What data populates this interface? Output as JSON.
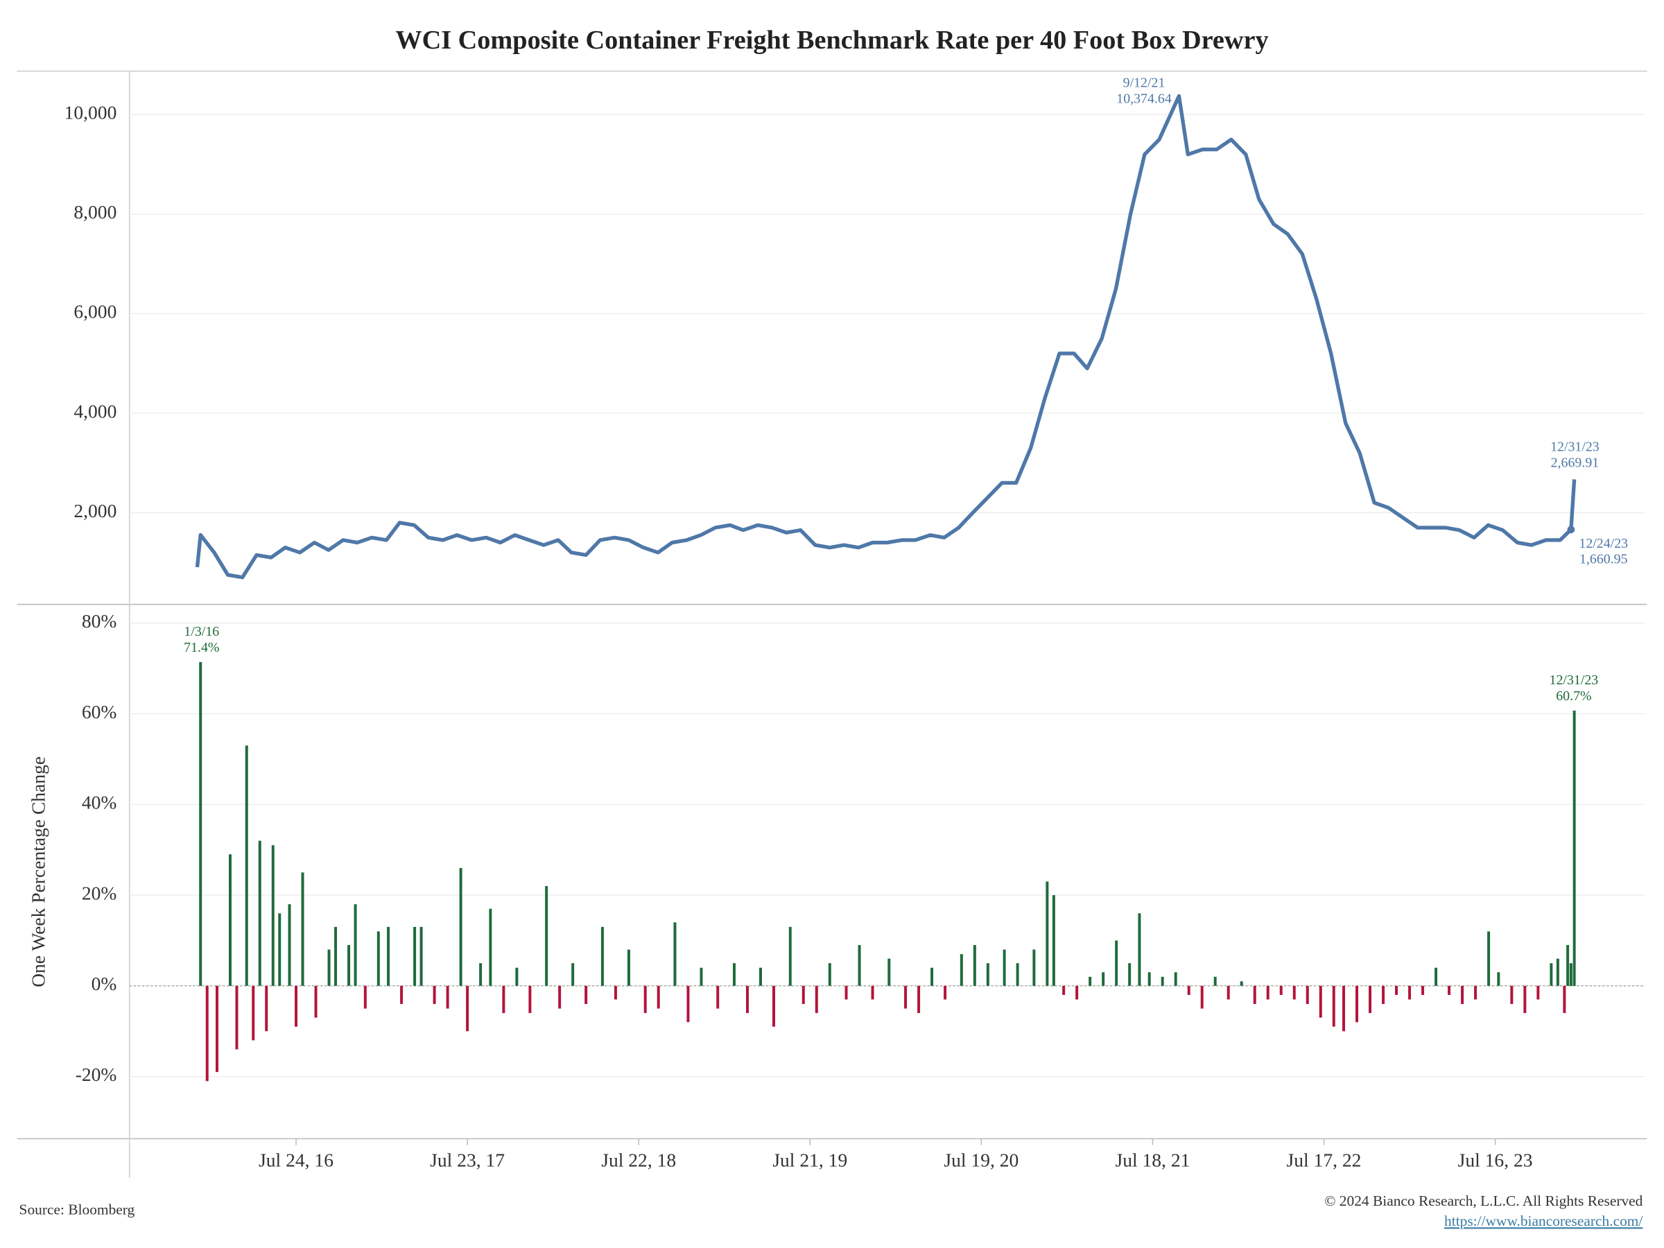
{
  "title": "WCI Composite Container Freight Benchmark Rate per 40 Foot Box Drewry",
  "source": "Source: Bloomberg",
  "copyright": "© 2024 Bianco Research, L.L.C. All Rights Reserved",
  "url": "https://www.biancoresearch.com/",
  "chart_data": [
    {
      "type": "line",
      "color": "#4f78a8",
      "xlim": [
        "2015-08-05",
        "2024-05-29"
      ],
      "ylim": [
        190,
        10875
      ],
      "yticks": [
        {
          "value": 2000,
          "label": "2,000"
        },
        {
          "value": 4000,
          "label": "4,000"
        },
        {
          "value": 6000,
          "label": "6,000"
        },
        {
          "value": 8000,
          "label": "8,000"
        },
        {
          "value": 10000,
          "label": "10,000"
        }
      ],
      "grid": true,
      "x": [
        "2015-12-27",
        "2016-01-03",
        "2016-02-01",
        "2016-03-01",
        "2016-04-01",
        "2016-05-01",
        "2016-06-01",
        "2016-07-01",
        "2016-08-01",
        "2016-09-01",
        "2016-10-01",
        "2016-11-01",
        "2016-12-01",
        "2017-01-01",
        "2017-02-01",
        "2017-03-01",
        "2017-04-01",
        "2017-05-01",
        "2017-06-01",
        "2017-07-01",
        "2017-08-01",
        "2017-09-01",
        "2017-10-01",
        "2017-11-01",
        "2017-12-01",
        "2018-01-01",
        "2018-02-01",
        "2018-03-01",
        "2018-04-01",
        "2018-05-01",
        "2018-06-01",
        "2018-07-01",
        "2018-08-01",
        "2018-09-01",
        "2018-10-01",
        "2018-11-01",
        "2018-12-01",
        "2019-01-01",
        "2019-02-01",
        "2019-03-01",
        "2019-04-01",
        "2019-05-01",
        "2019-06-01",
        "2019-07-01",
        "2019-08-01",
        "2019-09-01",
        "2019-10-01",
        "2019-11-01",
        "2019-12-01",
        "2020-01-01",
        "2020-02-01",
        "2020-03-01",
        "2020-04-01",
        "2020-05-01",
        "2020-06-01",
        "2020-07-01",
        "2020-08-01",
        "2020-09-01",
        "2020-10-01",
        "2020-11-01",
        "2020-12-01",
        "2021-01-01",
        "2021-02-01",
        "2021-03-01",
        "2021-04-01",
        "2021-05-01",
        "2021-06-01",
        "2021-07-01",
        "2021-08-01",
        "2021-09-12",
        "2021-10-01",
        "2021-11-01",
        "2021-12-01",
        "2022-01-01",
        "2022-02-01",
        "2022-03-01",
        "2022-04-01",
        "2022-05-01",
        "2022-06-01",
        "2022-07-01",
        "2022-08-01",
        "2022-09-01",
        "2022-10-01",
        "2022-11-01",
        "2022-12-01",
        "2023-01-01",
        "2023-02-01",
        "2023-03-01",
        "2023-04-01",
        "2023-05-01",
        "2023-06-01",
        "2023-07-01",
        "2023-08-01",
        "2023-09-01",
        "2023-10-01",
        "2023-11-01",
        "2023-12-01",
        "2023-12-24",
        "2023-12-31"
      ],
      "values": [
        906,
        1553,
        1200,
        750,
        700,
        1150,
        1100,
        1300,
        1200,
        1400,
        1250,
        1450,
        1400,
        1500,
        1450,
        1800,
        1750,
        1500,
        1450,
        1550,
        1450,
        1500,
        1400,
        1550,
        1450,
        1350,
        1450,
        1200,
        1150,
        1450,
        1500,
        1450,
        1300,
        1200,
        1400,
        1450,
        1550,
        1700,
        1750,
        1650,
        1750,
        1700,
        1600,
        1650,
        1350,
        1300,
        1350,
        1300,
        1400,
        1400,
        1450,
        1450,
        1550,
        1500,
        1700,
        2000,
        2300,
        2600,
        2600,
        3300,
        4300,
        5200,
        5200,
        4900,
        5500,
        6500,
        8000,
        9200,
        9500,
        10374.64,
        9200,
        9300,
        9300,
        9500,
        9200,
        8300,
        7800,
        7600,
        7200,
        6300,
        5200,
        3800,
        3200,
        2200,
        2100,
        1900,
        1700,
        1700,
        1700,
        1650,
        1500,
        1750,
        1650,
        1400,
        1350,
        1450,
        1450,
        1660.95,
        2669.91
      ],
      "annotations": [
        [
          "9/12/21",
          "10,374.64"
        ],
        [
          "12/31/23",
          "2,669.91"
        ],
        [
          "12/24/23",
          "1,660.95"
        ]
      ]
    },
    {
      "type": "bar",
      "ylabel": "One Week Percentage Change",
      "colors": {
        "positive": "#1f6b3b",
        "negative": "#b3143c"
      },
      "xlim": [
        "2015-08-05",
        "2024-05-29"
      ],
      "ylim": [
        -33.7,
        84
      ],
      "yticks": [
        {
          "value": -20,
          "label": "-20%"
        },
        {
          "value": 0,
          "label": "0%"
        },
        {
          "value": 20,
          "label": "20%"
        },
        {
          "value": 40,
          "label": "40%"
        },
        {
          "value": 60,
          "label": "60%"
        },
        {
          "value": 80,
          "label": "80%"
        }
      ],
      "xticks": [
        {
          "value": "2016-07-24",
          "label": "Jul 24, 16"
        },
        {
          "value": "2017-07-23",
          "label": "Jul 23, 17"
        },
        {
          "value": "2018-07-22",
          "label": "Jul 22, 18"
        },
        {
          "value": "2019-07-21",
          "label": "Jul 21, 19"
        },
        {
          "value": "2020-07-19",
          "label": "Jul 19, 20"
        },
        {
          "value": "2021-07-18",
          "label": "Jul 18, 21"
        },
        {
          "value": "2022-07-17",
          "label": "Jul 17, 22"
        },
        {
          "value": "2023-07-16",
          "label": "Jul 16, 23"
        }
      ],
      "grid": true,
      "x": [
        "2016-01-03",
        "2016-01-17",
        "2016-02-07",
        "2016-03-06",
        "2016-03-20",
        "2016-04-10",
        "2016-04-24",
        "2016-05-08",
        "2016-05-22",
        "2016-06-05",
        "2016-06-19",
        "2016-07-10",
        "2016-07-24",
        "2016-08-07",
        "2016-09-04",
        "2016-10-02",
        "2016-10-16",
        "2016-11-13",
        "2016-11-27",
        "2016-12-18",
        "2017-01-15",
        "2017-02-05",
        "2017-03-05",
        "2017-04-02",
        "2017-04-16",
        "2017-05-14",
        "2017-06-11",
        "2017-07-09",
        "2017-07-23",
        "2017-08-20",
        "2017-09-10",
        "2017-10-08",
        "2017-11-05",
        "2017-12-03",
        "2018-01-07",
        "2018-02-04",
        "2018-03-04",
        "2018-04-01",
        "2018-05-06",
        "2018-06-03",
        "2018-07-01",
        "2018-08-05",
        "2018-09-02",
        "2018-10-07",
        "2018-11-04",
        "2018-12-02",
        "2019-01-06",
        "2019-02-10",
        "2019-03-10",
        "2019-04-07",
        "2019-05-05",
        "2019-06-09",
        "2019-07-07",
        "2019-08-04",
        "2019-09-01",
        "2019-10-06",
        "2019-11-03",
        "2019-12-01",
        "2020-01-05",
        "2020-02-09",
        "2020-03-08",
        "2020-04-05",
        "2020-05-03",
        "2020-06-07",
        "2020-07-05",
        "2020-08-02",
        "2020-09-06",
        "2020-10-04",
        "2020-11-08",
        "2020-12-06",
        "2020-12-20",
        "2021-01-10",
        "2021-02-07",
        "2021-03-07",
        "2021-04-04",
        "2021-05-02",
        "2021-05-30",
        "2021-06-20",
        "2021-07-11",
        "2021-08-08",
        "2021-09-05",
        "2021-10-03",
        "2021-10-31",
        "2021-11-28",
        "2021-12-26",
        "2022-01-23",
        "2022-02-20",
        "2022-03-20",
        "2022-04-17",
        "2022-05-15",
        "2022-06-12",
        "2022-07-10",
        "2022-08-07",
        "2022-08-28",
        "2022-09-25",
        "2022-10-23",
        "2022-11-20",
        "2022-12-18",
        "2023-01-15",
        "2023-02-12",
        "2023-03-12",
        "2023-04-09",
        "2023-05-07",
        "2023-06-04",
        "2023-07-02",
        "2023-07-23",
        "2023-08-20",
        "2023-09-17",
        "2023-10-15",
        "2023-11-12",
        "2023-11-26",
        "2023-12-10",
        "2023-12-17",
        "2023-12-24",
        "2023-12-31"
      ],
      "values": [
        71.4,
        -21,
        -19,
        29,
        -14,
        53,
        -12,
        32,
        -10,
        31,
        16,
        18,
        -9,
        25,
        -7,
        8,
        13,
        9,
        18,
        -5,
        12,
        13,
        -4,
        13,
        13,
        -4,
        -5,
        26,
        -10,
        5,
        17,
        -6,
        4,
        -6,
        22,
        -5,
        5,
        -4,
        13,
        -3,
        8,
        -6,
        -5,
        14,
        -8,
        4,
        -5,
        5,
        -6,
        4,
        -9,
        13,
        -4,
        -6,
        5,
        -3,
        9,
        -3,
        6,
        -5,
        -6,
        4,
        -3,
        7,
        9,
        5,
        8,
        5,
        8,
        23,
        20,
        -2,
        -3,
        2,
        3,
        10,
        5,
        16,
        3,
        2,
        3,
        -2,
        -5,
        2,
        -3,
        1,
        -4,
        -3,
        -2,
        -3,
        -4,
        -7,
        -9,
        -10,
        -8,
        -6,
        -4,
        -2,
        -3,
        -2,
        4,
        -2,
        -4,
        -3,
        12,
        3,
        -4,
        -6,
        -3,
        5,
        6,
        -6,
        9,
        5,
        60.7
      ],
      "annotations": [
        [
          "1/3/16",
          "71.4%"
        ],
        [
          "12/31/23",
          "60.7%"
        ]
      ]
    }
  ]
}
